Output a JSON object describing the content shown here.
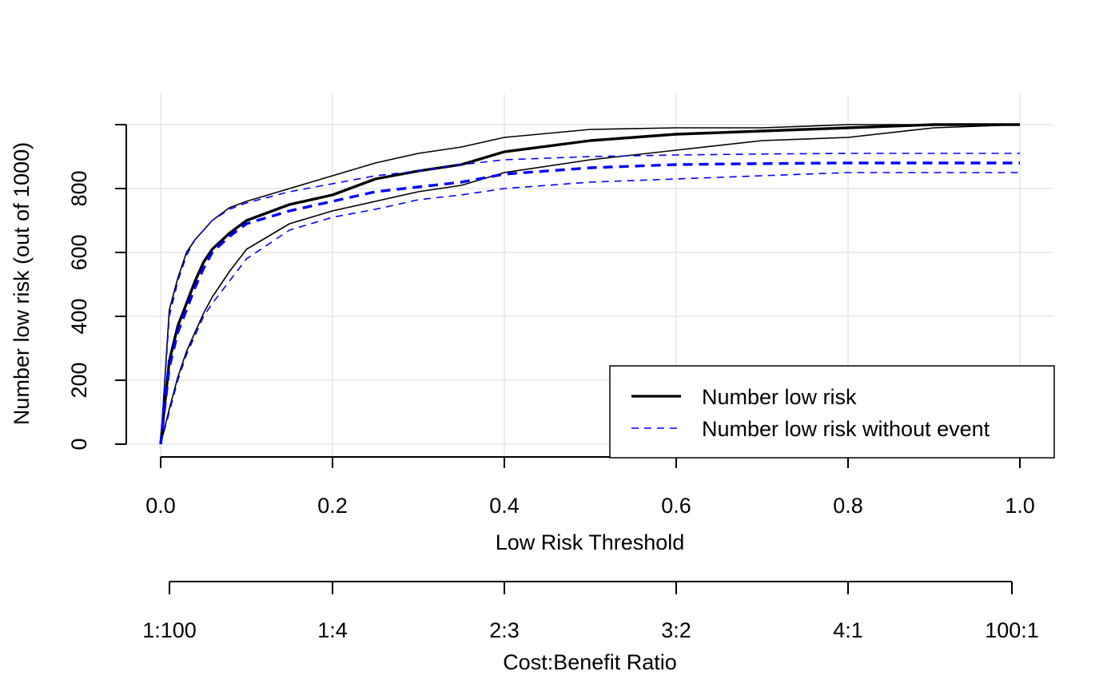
{
  "chart_data": {
    "type": "line",
    "title": "",
    "xlabel": "Low Risk Threshold",
    "ylabel": "Number low risk (out of 1000)",
    "xlim": [
      0,
      1
    ],
    "ylim": [
      0,
      1000
    ],
    "grid": true,
    "x_ticks": [
      "0.0",
      "0.2",
      "0.4",
      "0.6",
      "0.8",
      "1.0"
    ],
    "y_ticks": [
      "0",
      "200",
      "400",
      "600",
      "800"
    ],
    "secondary_axis": {
      "label": "Cost:Benefit Ratio",
      "ticks": [
        "1:100",
        "1:4",
        "2:3",
        "3:2",
        "4:1",
        "100:1"
      ]
    },
    "legend": {
      "placement": "bottom-right",
      "entries": [
        "Number low risk",
        "Number low risk without event"
      ]
    },
    "x": [
      0,
      0.01,
      0.02,
      0.03,
      0.04,
      0.05,
      0.06,
      0.08,
      0.1,
      0.15,
      0.2,
      0.25,
      0.3,
      0.35,
      0.4,
      0.5,
      0.6,
      0.7,
      0.8,
      0.9,
      1.0
    ],
    "series": [
      {
        "name": "Number low risk",
        "color": "#000000",
        "style": "solid",
        "values": [
          0,
          260,
          370,
          440,
          510,
          570,
          610,
          660,
          700,
          750,
          780,
          830,
          855,
          875,
          915,
          950,
          970,
          980,
          990,
          1000,
          1000
        ],
        "lower": [
          0,
          110,
          210,
          290,
          350,
          410,
          460,
          540,
          610,
          690,
          730,
          760,
          790,
          810,
          850,
          890,
          920,
          950,
          960,
          990,
          1000
        ],
        "upper": [
          0,
          420,
          520,
          600,
          640,
          670,
          700,
          740,
          760,
          800,
          840,
          880,
          910,
          930,
          960,
          985,
          990,
          990,
          1000,
          1000,
          1000
        ]
      },
      {
        "name": "Number low risk without event",
        "color": "#0000ff",
        "style": "dashed",
        "values": [
          0,
          240,
          350,
          420,
          490,
          550,
          600,
          650,
          690,
          730,
          760,
          790,
          805,
          820,
          845,
          865,
          875,
          878,
          880,
          880,
          880
        ],
        "lower": [
          0,
          100,
          200,
          280,
          340,
          400,
          440,
          510,
          580,
          670,
          710,
          735,
          765,
          780,
          800,
          820,
          830,
          840,
          850,
          850,
          850
        ],
        "upper": [
          0,
          400,
          510,
          590,
          640,
          670,
          700,
          735,
          755,
          790,
          815,
          840,
          855,
          875,
          890,
          900,
          905,
          908,
          910,
          910,
          910
        ]
      }
    ]
  }
}
